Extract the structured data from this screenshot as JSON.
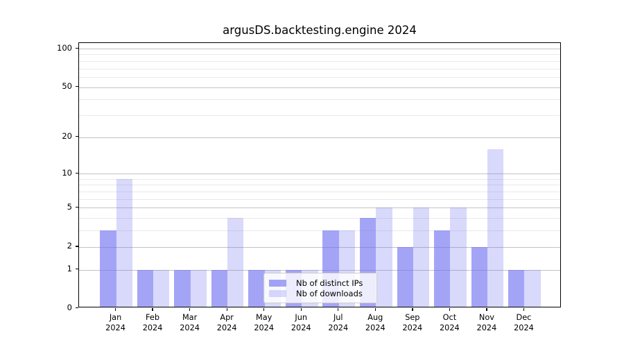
{
  "chart_data": {
    "type": "bar",
    "title": "argusDS.backtesting.engine 2024",
    "categories": [
      "Jan",
      "Feb",
      "Mar",
      "Apr",
      "May",
      "Jun",
      "Jul",
      "Aug",
      "Sep",
      "Oct",
      "Nov",
      "Dec"
    ],
    "year_label": "2024",
    "series": [
      {
        "name": "Nb of distinct IPs",
        "values": [
          3,
          1,
          1,
          1,
          1,
          1,
          3,
          4,
          2,
          3,
          2,
          1
        ],
        "color": "rgba(108,108,242,0.62)"
      },
      {
        "name": "Nb of downloads",
        "values": [
          9,
          1,
          1,
          4,
          1,
          1,
          3,
          5,
          5,
          5,
          16,
          1
        ],
        "color": "rgba(108,108,242,0.26)"
      }
    ],
    "yscale": "log10(1+x)",
    "ylim": [
      0,
      110
    ],
    "ytick_values": [
      0,
      1,
      2,
      5,
      10,
      20,
      50,
      100
    ],
    "ytick_labels": [
      "0",
      "1",
      "2",
      "5",
      "10",
      "20",
      "50",
      "100"
    ],
    "minor_gridline_values": [
      3,
      4,
      6,
      7,
      8,
      9,
      30,
      40,
      60,
      70,
      80,
      90
    ],
    "grid": true,
    "legend_position": "inside-lower-center"
  },
  "colors": {
    "grid_major": "#c2c2c2",
    "grid_minor": "#e9e9e9",
    "axis": "#000000",
    "background": "#ffffff",
    "legend_border": "#cccccc"
  }
}
